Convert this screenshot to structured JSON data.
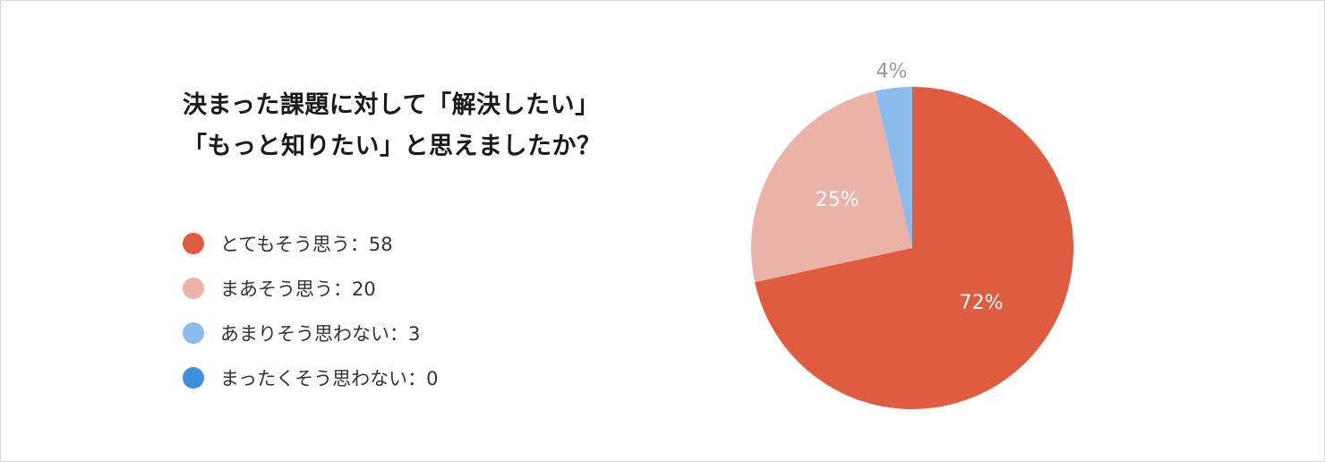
{
  "title_lines": [
    "決まった課題に対して「解決したい」",
    "「もっと知りたい」と思えましたか？"
  ],
  "legend": [
    {
      "label": "とてもそう思う：58"
    },
    {
      "label": "まあそう思う：20"
    },
    {
      "label": "あまりそう思わない：3"
    },
    {
      "label": "まったくそう思わない：0"
    }
  ],
  "chart_data": {
    "type": "pie",
    "title": "決まった課題に対して「解決したい」「もっと知りたい」と思えましたか？",
    "categories": [
      "とてもそう思う",
      "まあそう思う",
      "あまりそう思わない",
      "まったくそう思わない"
    ],
    "values": [
      58,
      20,
      3,
      0
    ],
    "slice_labels": [
      "72%",
      "25%",
      "4%",
      ""
    ],
    "colors": [
      "#e05c40",
      "#ebb3a7",
      "#8cbcec",
      "#3f8fe0"
    ],
    "label_colors": [
      "#ffffff",
      "#ffffff",
      "#9a9a9a",
      "#9a9a9a"
    ],
    "start": "top",
    "direction": "clockwise",
    "legend_position": "left"
  }
}
